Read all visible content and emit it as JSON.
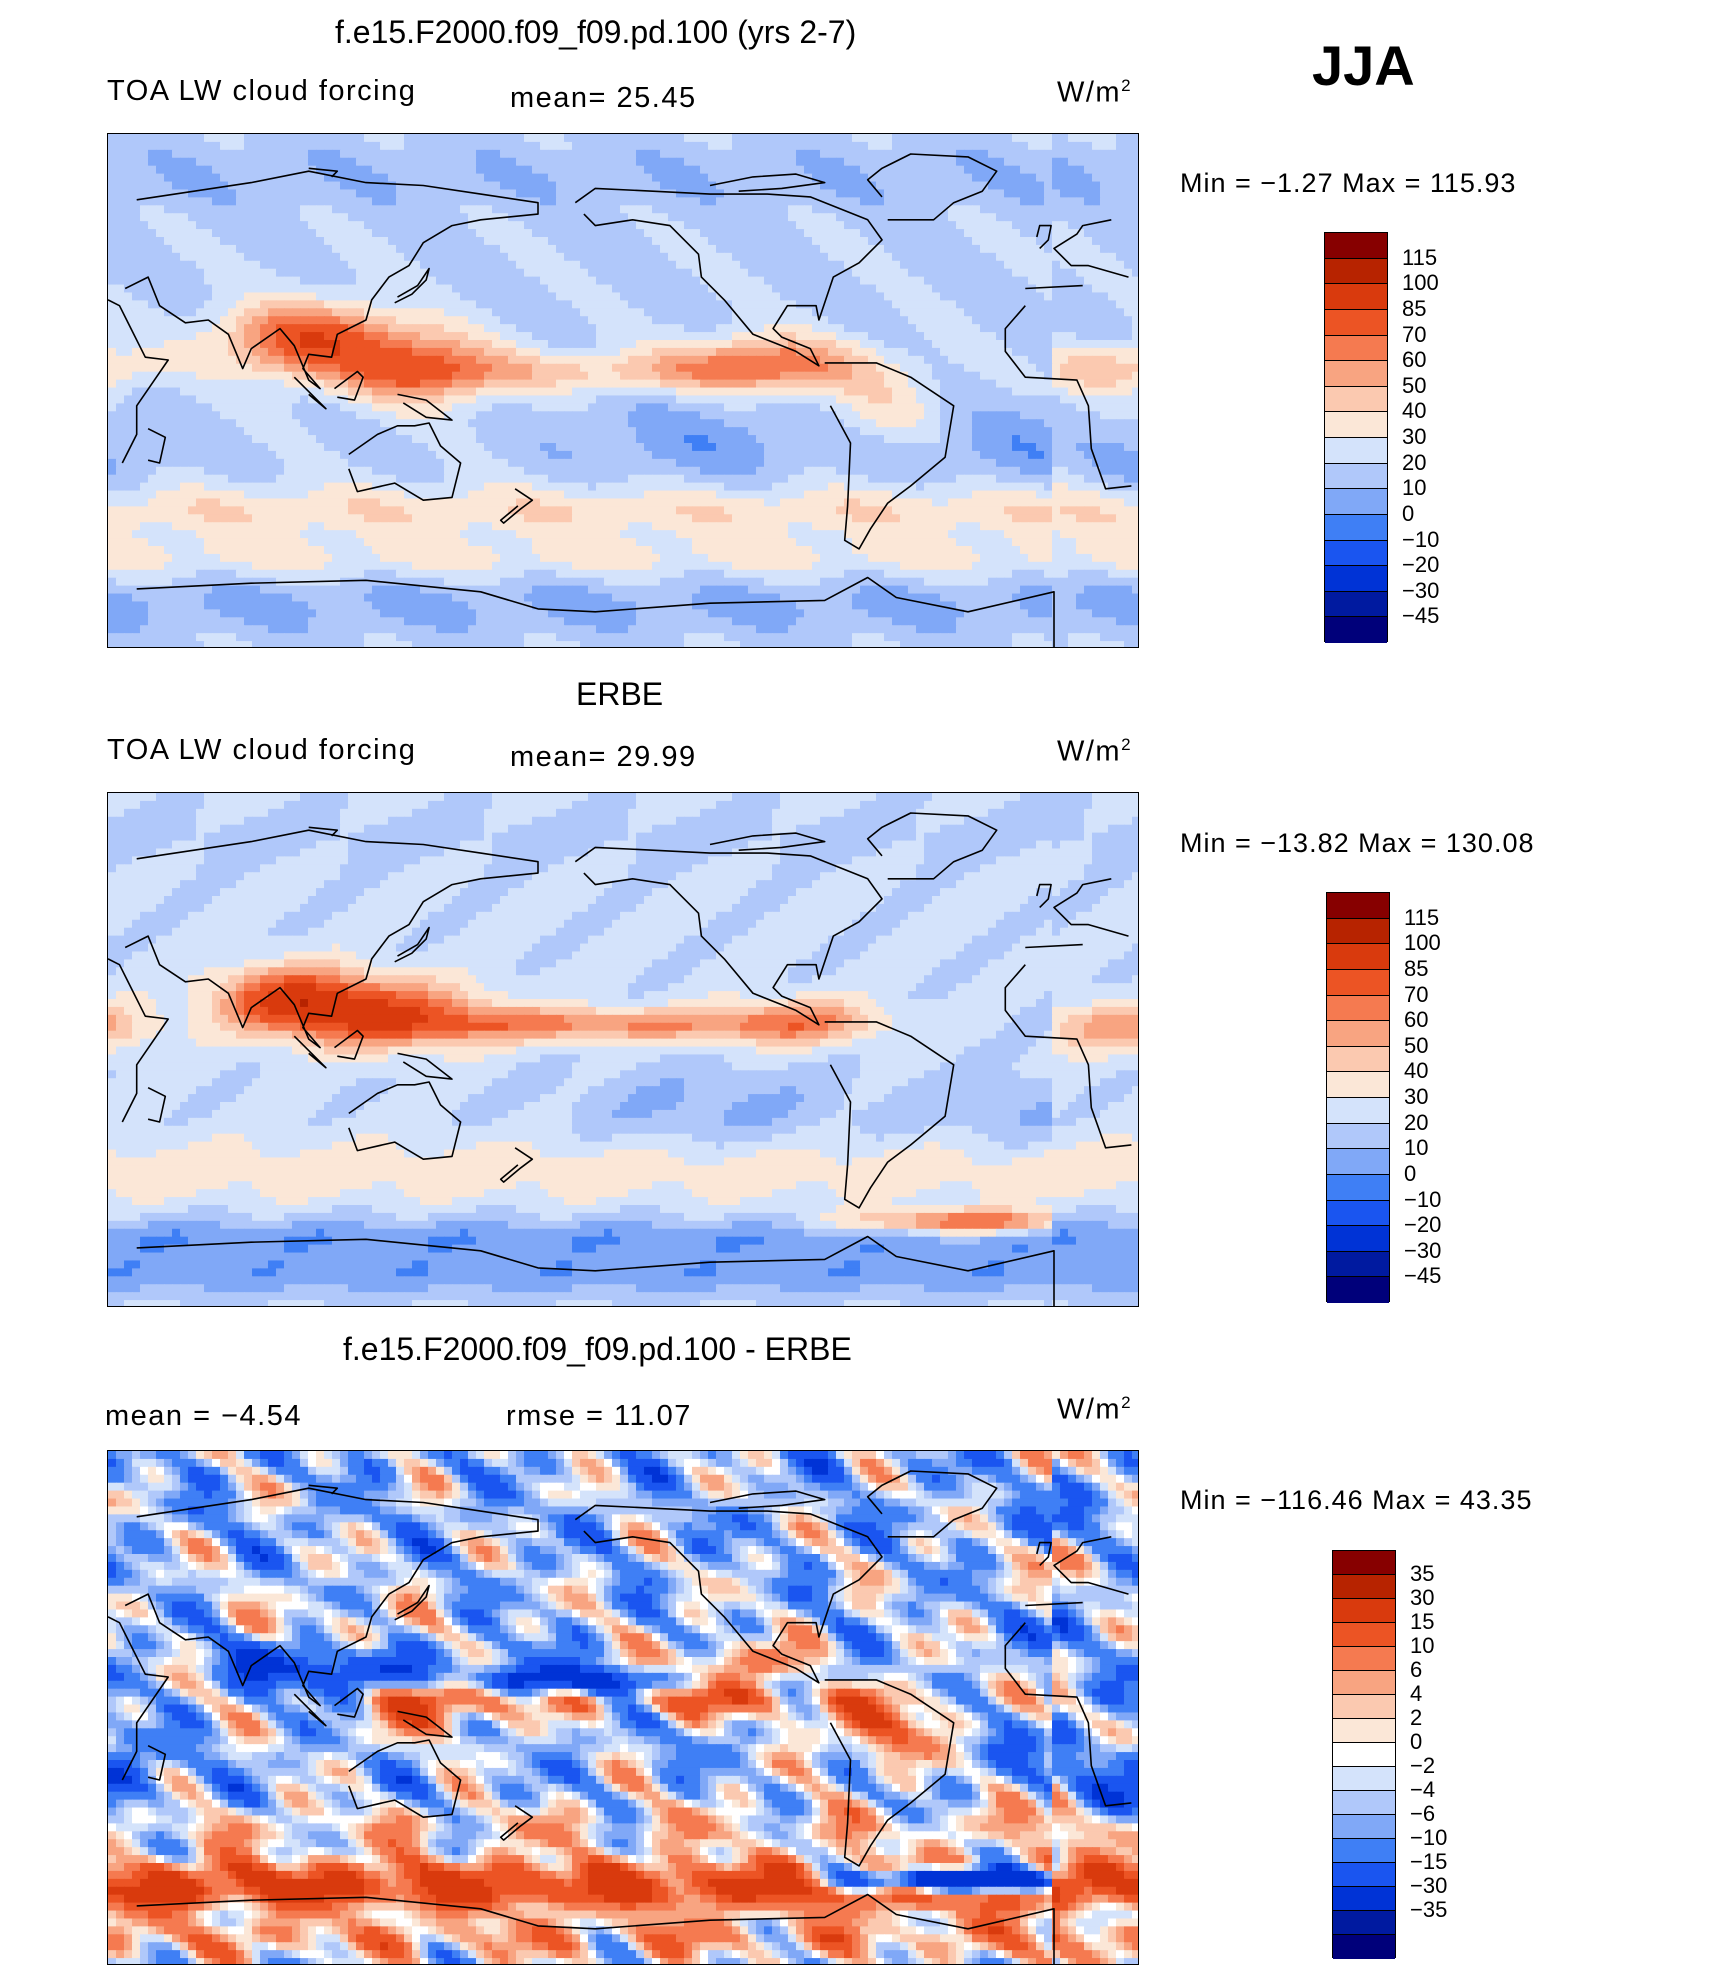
{
  "season": "JJA",
  "colors": {
    "abs_levels": [
      "#00007a",
      "#001aa0",
      "#0033d6",
      "#1a55f0",
      "#3f7ff5",
      "#80a8f7",
      "#b0c8fa",
      "#d4e3fb",
      "#fbe7d7",
      "#fbc9b0",
      "#f8a481",
      "#f57a50",
      "#ec5424",
      "#d93a0d",
      "#b72300",
      "#870000"
    ],
    "diff_levels": [
      "#00007a",
      "#001aa0",
      "#0033d6",
      "#1a55f0",
      "#3f7ff5",
      "#80a8f7",
      "#b0c8fa",
      "#d4e3fb",
      "#ffffff",
      "#fbe7d7",
      "#fbc9b0",
      "#f8a481",
      "#f57a50",
      "#ec5424",
      "#d93a0d",
      "#b72300",
      "#870000"
    ],
    "land_outline": "#000000"
  },
  "panels": [
    {
      "title": "f.e15.F2000.f09_f09.pd.100 (yrs 2-7)",
      "left_label": "TOA LW cloud forcing",
      "mean_text": "mean=   25.45",
      "units": "W/m",
      "units_sup": "2",
      "minmax_text": "Min  =    −1.27  Max  =  115.93",
      "colorbar_labels": [
        "115",
        "100",
        "85",
        "70",
        "60",
        "50",
        "40",
        "30",
        "20",
        "10",
        "0",
        "−10",
        "−20",
        "−30",
        "−45"
      ],
      "field": "model"
    },
    {
      "title": "ERBE",
      "left_label": "TOA LW cloud forcing",
      "mean_text": "mean=   29.99",
      "units": "W/m",
      "units_sup": "2",
      "minmax_text": "Min  =  −13.82  Max  =  130.08",
      "colorbar_labels": [
        "115",
        "100",
        "85",
        "70",
        "60",
        "50",
        "40",
        "30",
        "20",
        "10",
        "0",
        "−10",
        "−20",
        "−30",
        "−45"
      ],
      "field": "obs"
    },
    {
      "title": "f.e15.F2000.f09_f09.pd.100 - ERBE",
      "mean_text": "mean  =    −4.54",
      "rmse_text": "rmse  =    11.07",
      "units": "W/m",
      "units_sup": "2",
      "minmax_text": "Min  =  −116.46  Max  =    43.35",
      "colorbar_labels": [
        "35",
        "30",
        "15",
        "10",
        "6",
        "4",
        "2",
        "0",
        "−2",
        "−4",
        "−6",
        "−10",
        "−15",
        "−30",
        "−35"
      ],
      "field": "diff"
    }
  ]
}
